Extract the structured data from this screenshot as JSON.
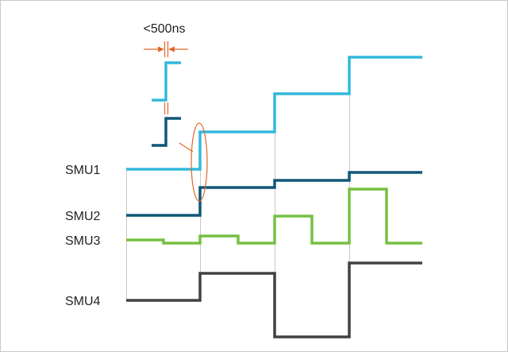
{
  "diagram": {
    "timing_annotation": "<500ns",
    "channels": [
      {
        "name": "SMU1",
        "color": "#33b9dc"
      },
      {
        "name": "SMU2",
        "color": "#0f5778"
      },
      {
        "name": "SMU3",
        "color": "#76c043"
      },
      {
        "name": "SMU4",
        "color": "#3f4245"
      }
    ],
    "frame_color": "#c8c8c8",
    "annotation_color": "#e0672a",
    "gridline_color": "#c8c8c8"
  }
}
